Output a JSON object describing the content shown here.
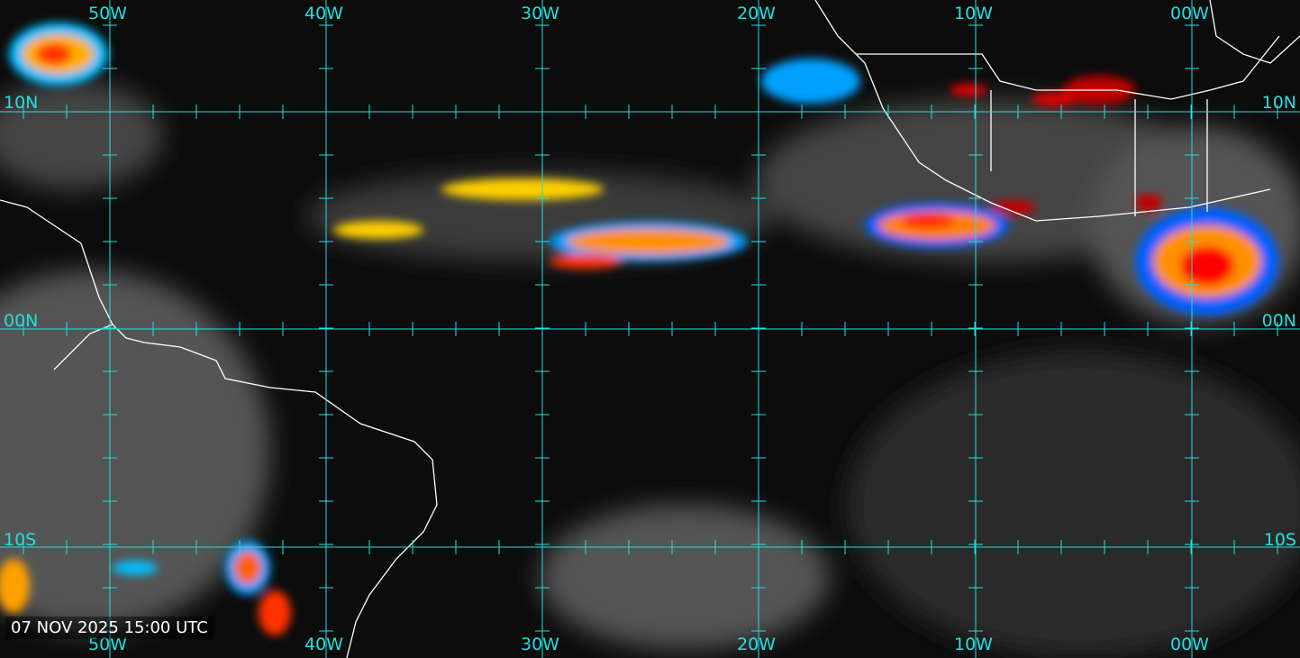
{
  "timestamp": "07 NOV 2025 15:00 UTC",
  "grid_color": "#22e0e0",
  "longitude_labels": [
    "50W",
    "40W",
    "30W",
    "20W",
    "10W",
    "00W"
  ],
  "latitude_labels_left": [
    "10N",
    "00N",
    "10S"
  ],
  "latitude_labels_right": [
    "10N",
    "00N",
    "10S"
  ],
  "colors": {
    "coastline": "#ffffff",
    "cold_cloud_tops": [
      "#0000ff",
      "#00c0ff",
      "#ffff00",
      "#ff8000",
      "#ff0000",
      "#b00000"
    ]
  }
}
